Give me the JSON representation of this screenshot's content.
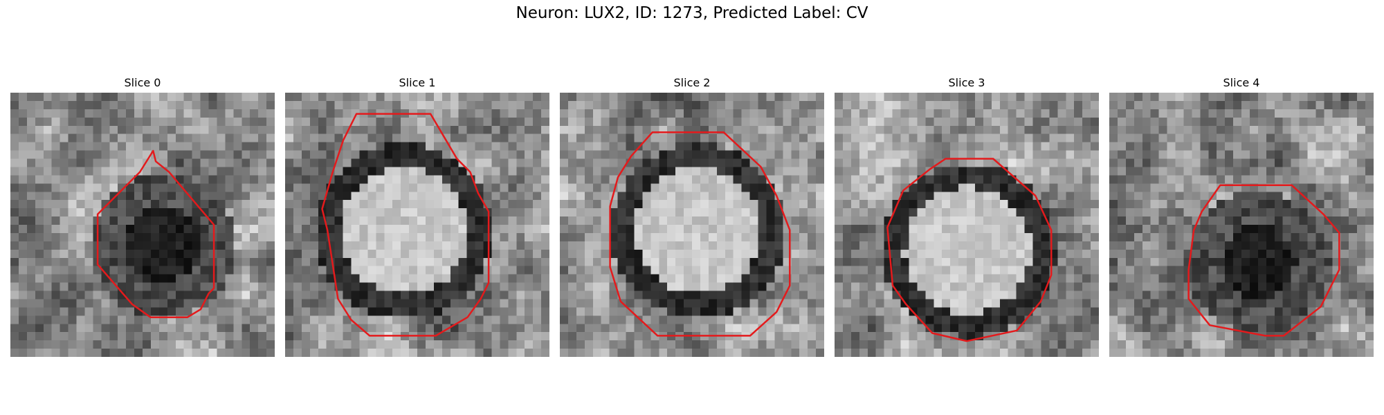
{
  "figure": {
    "title": "Neuron: LUX2, ID: 1273, Predicted Label: CV"
  },
  "colors": {
    "contour": "#e41a1c"
  },
  "panels": [
    {
      "title": "Slice 0",
      "seed": 11,
      "center": "dark",
      "contour": [
        [
          5.4,
          2.2
        ],
        [
          4.9,
          3.0
        ],
        [
          3.3,
          4.6
        ],
        [
          3.3,
          6.5
        ],
        [
          4.6,
          8.0
        ],
        [
          5.3,
          8.5
        ],
        [
          6.7,
          8.5
        ],
        [
          7.2,
          8.2
        ],
        [
          7.5,
          7.6
        ],
        [
          7.7,
          7.4
        ],
        [
          7.7,
          5.0
        ],
        [
          6.0,
          3.0
        ],
        [
          5.5,
          2.6
        ]
      ]
    },
    {
      "title": "Slice 1",
      "seed": 23,
      "center": "light",
      "contour": [
        [
          2.7,
          0.8
        ],
        [
          5.5,
          0.8
        ],
        [
          6.5,
          2.5
        ],
        [
          7.0,
          3.0
        ],
        [
          7.3,
          3.8
        ],
        [
          7.7,
          4.5
        ],
        [
          7.7,
          7.2
        ],
        [
          7.4,
          7.8
        ],
        [
          6.9,
          8.5
        ],
        [
          5.7,
          9.2
        ],
        [
          3.2,
          9.2
        ],
        [
          2.5,
          8.6
        ],
        [
          2.0,
          7.8
        ],
        [
          1.8,
          6.5
        ],
        [
          1.6,
          5.2
        ],
        [
          1.4,
          4.4
        ],
        [
          1.8,
          3.0
        ],
        [
          2.2,
          1.8
        ]
      ]
    },
    {
      "title": "Slice 2",
      "seed": 37,
      "center": "light",
      "contour": [
        [
          3.5,
          1.5
        ],
        [
          6.2,
          1.5
        ],
        [
          7.6,
          2.8
        ],
        [
          8.2,
          3.9
        ],
        [
          8.7,
          5.2
        ],
        [
          8.7,
          7.3
        ],
        [
          8.2,
          8.3
        ],
        [
          7.2,
          9.2
        ],
        [
          3.7,
          9.2
        ],
        [
          2.3,
          7.9
        ],
        [
          1.9,
          6.6
        ],
        [
          1.9,
          4.3
        ],
        [
          2.2,
          3.2
        ],
        [
          2.7,
          2.4
        ]
      ]
    },
    {
      "title": "Slice 3",
      "seed": 51,
      "center": "light",
      "contour": [
        [
          4.2,
          2.5
        ],
        [
          6.0,
          2.5
        ],
        [
          7.6,
          3.9
        ],
        [
          8.2,
          5.2
        ],
        [
          8.2,
          6.9
        ],
        [
          7.8,
          7.9
        ],
        [
          6.9,
          9.0
        ],
        [
          5.0,
          9.4
        ],
        [
          3.7,
          9.1
        ],
        [
          2.7,
          8.0
        ],
        [
          2.2,
          7.3
        ],
        [
          2.0,
          5.1
        ],
        [
          2.6,
          3.7
        ],
        [
          3.6,
          2.9
        ]
      ]
    },
    {
      "title": "Slice 4",
      "seed": 67,
      "center": "dark",
      "contour": [
        [
          4.2,
          3.5
        ],
        [
          6.9,
          3.5
        ],
        [
          8.1,
          4.6
        ],
        [
          8.7,
          5.3
        ],
        [
          8.7,
          6.7
        ],
        [
          8.0,
          8.1
        ],
        [
          6.6,
          9.2
        ],
        [
          5.9,
          9.2
        ],
        [
          3.8,
          8.8
        ],
        [
          3.0,
          7.8
        ],
        [
          3.0,
          6.7
        ],
        [
          3.2,
          5.2
        ],
        [
          3.5,
          4.5
        ]
      ]
    }
  ]
}
